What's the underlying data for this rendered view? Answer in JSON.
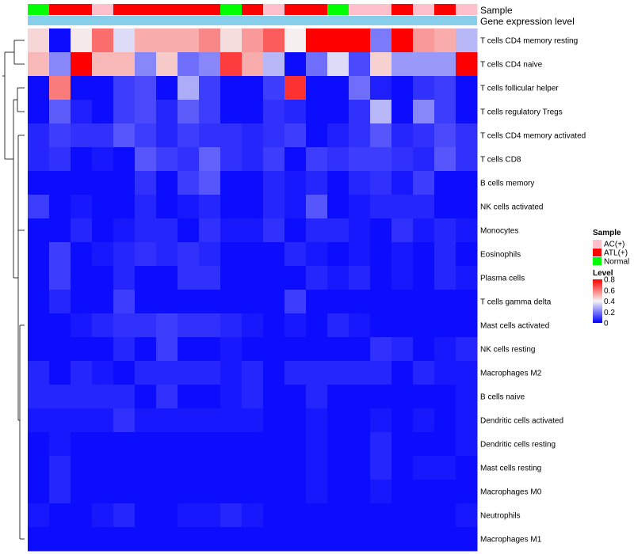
{
  "chart_data": {
    "type": "heatmap",
    "annotations": {
      "sample_title": "Sample",
      "expression_title": "Gene expression level",
      "samples": [
        "Normal",
        "ATL(+)",
        "ATL(+)",
        "AC(+)",
        "ATL(+)",
        "ATL(+)",
        "ATL(+)",
        "ATL(+)",
        "ATL(+)",
        "Normal",
        "ATL(+)",
        "AC(+)",
        "ATL(+)",
        "ATL(+)",
        "Normal",
        "AC(+)",
        "AC(+)",
        "ATL(+)",
        "AC(+)",
        "ATL(+)",
        "AC(+)"
      ]
    },
    "rows": [
      "T cells CD4 memory resting",
      "T cells CD4 naive",
      "T cells follicular helper",
      "T cells regulatory  Tregs",
      "T cells CD4 memory activated",
      "T cells CD8",
      "B cells memory",
      "NK cells activated",
      "Monocytes",
      "Eosinophils",
      "Plasma cells",
      "T cells gamma delta",
      "Mast cells activated",
      "NK cells resting",
      "Macrophages M2",
      "B cells naive",
      "Dendritic cells activated",
      "Dendritic cells resting",
      "Mast cells resting",
      "Macrophages M0",
      "Neutrophils",
      "Macrophages M1"
    ],
    "values": [
      [
        0.45,
        0.02,
        0.42,
        0.62,
        0.36,
        0.52,
        0.52,
        0.52,
        0.58,
        0.44,
        0.55,
        0.65,
        0.41,
        0.8,
        0.8,
        0.8,
        0.2,
        0.8,
        0.55,
        0.52,
        0.3
      ],
      [
        0.5,
        0.22,
        0.8,
        0.5,
        0.5,
        0.22,
        0.47,
        0.18,
        0.22,
        0.7,
        0.52,
        0.3,
        0.02,
        0.18,
        0.36,
        0.12,
        0.46,
        0.25,
        0.25,
        0.25,
        0.8
      ],
      [
        0.02,
        0.6,
        0.02,
        0.02,
        0.1,
        0.12,
        0.02,
        0.28,
        0.1,
        0.02,
        0.02,
        0.1,
        0.72,
        0.02,
        0.02,
        0.18,
        0.05,
        0.02,
        0.08,
        0.1,
        0.02
      ],
      [
        0.02,
        0.15,
        0.05,
        0.02,
        0.1,
        0.12,
        0.06,
        0.15,
        0.1,
        0.02,
        0.02,
        0.08,
        0.06,
        0.02,
        0.02,
        0.08,
        0.3,
        0.02,
        0.22,
        0.1,
        0.02
      ],
      [
        0.06,
        0.1,
        0.08,
        0.08,
        0.14,
        0.1,
        0.06,
        0.1,
        0.08,
        0.08,
        0.06,
        0.08,
        0.1,
        0.02,
        0.05,
        0.08,
        0.14,
        0.06,
        0.08,
        0.12,
        0.08
      ],
      [
        0.06,
        0.08,
        0.02,
        0.04,
        0.02,
        0.14,
        0.1,
        0.08,
        0.16,
        0.08,
        0.06,
        0.1,
        0.02,
        0.1,
        0.08,
        0.1,
        0.1,
        0.08,
        0.06,
        0.14,
        0.08
      ],
      [
        0.02,
        0.02,
        0.02,
        0.02,
        0.02,
        0.08,
        0.02,
        0.1,
        0.14,
        0.02,
        0.02,
        0.06,
        0.04,
        0.06,
        0.02,
        0.06,
        0.08,
        0.04,
        0.1,
        0.02,
        0.02
      ],
      [
        0.1,
        0.02,
        0.04,
        0.02,
        0.02,
        0.06,
        0.02,
        0.04,
        0.06,
        0.02,
        0.02,
        0.06,
        0.04,
        0.14,
        0.02,
        0.04,
        0.06,
        0.06,
        0.06,
        0.02,
        0.02
      ],
      [
        0.02,
        0.02,
        0.06,
        0.02,
        0.04,
        0.06,
        0.06,
        0.02,
        0.08,
        0.04,
        0.04,
        0.08,
        0.02,
        0.06,
        0.06,
        0.04,
        0.02,
        0.08,
        0.04,
        0.06,
        0.04
      ],
      [
        0.02,
        0.1,
        0.02,
        0.04,
        0.06,
        0.08,
        0.06,
        0.08,
        0.06,
        0.02,
        0.02,
        0.02,
        0.06,
        0.04,
        0.02,
        0.04,
        0.02,
        0.04,
        0.02,
        0.06,
        0.02
      ],
      [
        0.02,
        0.1,
        0.02,
        0.02,
        0.06,
        0.02,
        0.02,
        0.08,
        0.08,
        0.02,
        0.02,
        0.02,
        0.02,
        0.06,
        0.04,
        0.06,
        0.02,
        0.04,
        0.02,
        0.06,
        0.04
      ],
      [
        0.02,
        0.06,
        0.02,
        0.02,
        0.1,
        0.02,
        0.02,
        0.02,
        0.02,
        0.02,
        0.02,
        0.02,
        0.1,
        0.02,
        0.02,
        0.02,
        0.02,
        0.02,
        0.02,
        0.02,
        0.02
      ],
      [
        0.02,
        0.02,
        0.04,
        0.06,
        0.08,
        0.08,
        0.1,
        0.08,
        0.08,
        0.06,
        0.04,
        0.02,
        0.04,
        0.02,
        0.06,
        0.04,
        0.02,
        0.02,
        0.02,
        0.02,
        0.02
      ],
      [
        0.02,
        0.02,
        0.02,
        0.02,
        0.06,
        0.02,
        0.1,
        0.02,
        0.02,
        0.04,
        0.02,
        0.02,
        0.02,
        0.02,
        0.02,
        0.02,
        0.08,
        0.06,
        0.02,
        0.04,
        0.06
      ],
      [
        0.06,
        0.02,
        0.06,
        0.04,
        0.02,
        0.06,
        0.06,
        0.06,
        0.06,
        0.04,
        0.06,
        0.02,
        0.06,
        0.06,
        0.06,
        0.06,
        0.06,
        0.02,
        0.06,
        0.04,
        0.04
      ],
      [
        0.06,
        0.06,
        0.06,
        0.06,
        0.06,
        0.02,
        0.08,
        0.02,
        0.02,
        0.04,
        0.06,
        0.02,
        0.02,
        0.06,
        0.02,
        0.02,
        0.02,
        0.02,
        0.02,
        0.02,
        0.04
      ],
      [
        0.04,
        0.04,
        0.04,
        0.04,
        0.08,
        0.04,
        0.04,
        0.04,
        0.04,
        0.04,
        0.04,
        0.02,
        0.02,
        0.04,
        0.02,
        0.02,
        0.04,
        0.02,
        0.04,
        0.02,
        0.04
      ],
      [
        0.02,
        0.04,
        0.02,
        0.02,
        0.02,
        0.02,
        0.02,
        0.02,
        0.02,
        0.02,
        0.02,
        0.02,
        0.02,
        0.04,
        0.02,
        0.02,
        0.06,
        0.02,
        0.02,
        0.02,
        0.04
      ],
      [
        0.02,
        0.06,
        0.02,
        0.02,
        0.02,
        0.02,
        0.02,
        0.02,
        0.02,
        0.02,
        0.02,
        0.02,
        0.02,
        0.04,
        0.02,
        0.02,
        0.06,
        0.02,
        0.04,
        0.04,
        0.02
      ],
      [
        0.02,
        0.06,
        0.02,
        0.02,
        0.02,
        0.02,
        0.02,
        0.02,
        0.02,
        0.02,
        0.02,
        0.02,
        0.02,
        0.04,
        0.02,
        0.02,
        0.04,
        0.02,
        0.02,
        0.02,
        0.02
      ],
      [
        0.04,
        0.02,
        0.02,
        0.04,
        0.06,
        0.02,
        0.02,
        0.04,
        0.04,
        0.06,
        0.04,
        0.02,
        0.02,
        0.02,
        0.02,
        0.02,
        0.02,
        0.02,
        0.02,
        0.02,
        0.04
      ],
      [
        0.02,
        0.02,
        0.02,
        0.02,
        0.02,
        0.02,
        0.02,
        0.02,
        0.02,
        0.02,
        0.02,
        0.02,
        0.02,
        0.02,
        0.02,
        0.02,
        0.02,
        0.02,
        0.02,
        0.02,
        0.02
      ]
    ],
    "legend": {
      "sample_title": "Sample",
      "sample_items": [
        {
          "label": "AC(+)",
          "color": "#FFC0CB"
        },
        {
          "label": "ATL(+)",
          "color": "#FF0000"
        },
        {
          "label": "Normal",
          "color": "#00FF00"
        }
      ],
      "level_title": "Level",
      "level_ticks": [
        "0.8",
        "0.6",
        "0.4",
        "0.2",
        "0"
      ],
      "level_range": [
        0,
        0.8
      ]
    },
    "colors": {
      "low": "#0000FF",
      "mid": "#F5F5F5",
      "high": "#FF0000",
      "expression_bar": "#87CEEB"
    }
  }
}
